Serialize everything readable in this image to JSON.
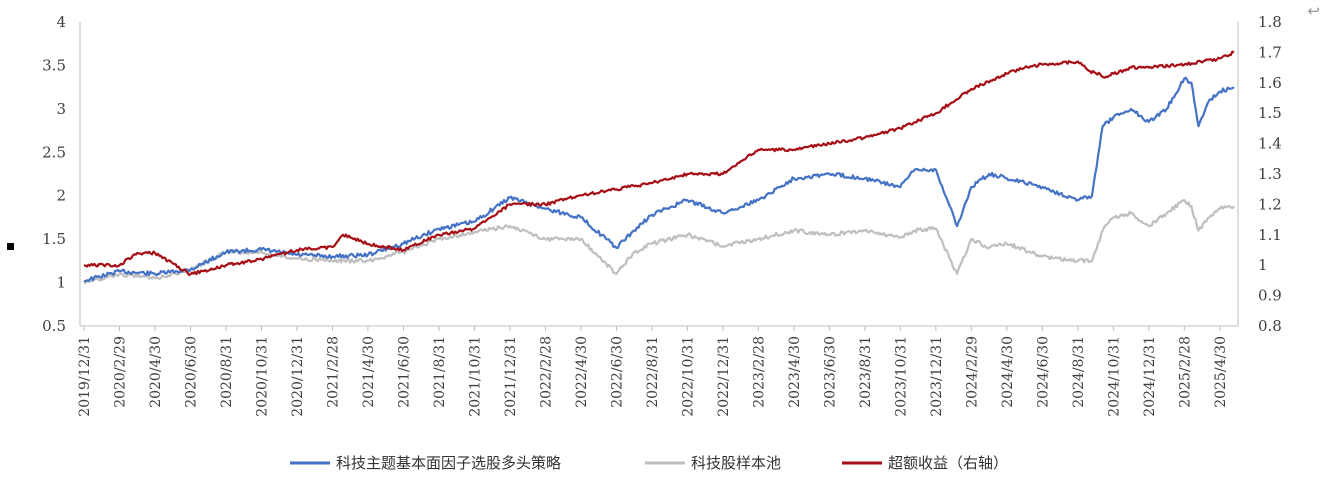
{
  "chart_data": {
    "type": "line",
    "x_tick_labels": [
      "2019/12/31",
      "2020/2/29",
      "2020/4/30",
      "2020/6/30",
      "2020/8/31",
      "2020/10/31",
      "2020/12/31",
      "2021/2/28",
      "2021/4/30",
      "2021/6/30",
      "2021/8/31",
      "2021/10/31",
      "2021/12/31",
      "2022/2/28",
      "2022/4/30",
      "2022/6/30",
      "2022/8/31",
      "2022/10/31",
      "2022/12/31",
      "2023/2/28",
      "2023/4/30",
      "2023/6/30",
      "2023/8/31",
      "2023/10/31",
      "2023/12/31",
      "2024/2/29",
      "2024/4/30",
      "2024/6/30",
      "2024/8/31",
      "2024/10/31",
      "2024/12/31",
      "2025/2/28",
      "2025/4/30"
    ],
    "y_left": {
      "ylim": [
        0.5,
        4
      ],
      "ticks": [
        "0.5",
        "1",
        "1.5",
        "2",
        "2.5",
        "3",
        "3.5",
        "4"
      ]
    },
    "y_right": {
      "ylim": [
        0.8,
        1.8
      ],
      "ticks": [
        "0.8",
        "0.9",
        "1",
        "1.1",
        "1.2",
        "1.3",
        "1.4",
        "1.5",
        "1.6",
        "1.7",
        "1.8"
      ]
    },
    "grid": false,
    "legend_position": "bottom",
    "series": [
      {
        "name": "科技主题基本面因子选股多头策略",
        "axis": "left",
        "color": "#4472c4",
        "x": [
          0,
          1,
          2,
          3,
          4,
          5,
          6,
          7,
          8,
          9,
          10,
          11,
          12,
          13,
          14,
          15,
          15.5,
          16,
          17,
          18,
          19,
          20,
          21,
          22,
          23,
          23.4,
          24,
          24.6,
          25,
          25.5,
          26,
          27,
          28,
          28.4,
          28.7,
          29,
          29.5,
          30,
          30.5,
          31,
          31.2,
          31.4,
          31.7,
          32,
          32.4
        ],
        "values": [
          1.02,
          1.13,
          1.1,
          1.15,
          1.35,
          1.38,
          1.32,
          1.3,
          1.32,
          1.45,
          1.62,
          1.7,
          1.98,
          1.85,
          1.75,
          1.4,
          1.6,
          1.78,
          1.95,
          1.8,
          1.95,
          2.2,
          2.25,
          2.2,
          2.1,
          2.3,
          2.3,
          1.65,
          2.1,
          2.25,
          2.2,
          2.1,
          1.95,
          2.0,
          2.8,
          2.9,
          3.0,
          2.85,
          3.0,
          3.35,
          3.3,
          2.8,
          3.1,
          3.2,
          3.25
        ]
      },
      {
        "name": "科技股样本池",
        "axis": "left",
        "color": "#bfbfbf",
        "x": [
          0,
          1,
          2,
          3,
          4,
          5,
          6,
          7,
          8,
          9,
          10,
          11,
          12,
          13,
          14,
          15,
          15.5,
          16,
          17,
          18,
          19,
          20,
          21,
          22,
          23,
          23.4,
          24,
          24.6,
          25,
          25.5,
          26,
          27,
          28,
          28.4,
          28.7,
          29,
          29.5,
          30,
          30.5,
          31,
          31.2,
          31.4,
          31.7,
          32,
          32.4
        ],
        "values": [
          1.0,
          1.1,
          1.05,
          1.15,
          1.35,
          1.35,
          1.28,
          1.25,
          1.25,
          1.35,
          1.5,
          1.58,
          1.65,
          1.5,
          1.5,
          1.1,
          1.35,
          1.45,
          1.55,
          1.42,
          1.5,
          1.6,
          1.55,
          1.6,
          1.52,
          1.6,
          1.62,
          1.1,
          1.5,
          1.4,
          1.45,
          1.3,
          1.25,
          1.25,
          1.6,
          1.75,
          1.8,
          1.65,
          1.8,
          1.95,
          1.88,
          1.6,
          1.75,
          1.85,
          1.88
        ]
      },
      {
        "name": "超额收益（右轴）",
        "axis": "right",
        "color": "#a50f15",
        "x": [
          0,
          1,
          1.5,
          2,
          3,
          4,
          5,
          6,
          7,
          7.3,
          8,
          9,
          10,
          11,
          12,
          13,
          14,
          15,
          16,
          17,
          18,
          19,
          20,
          21,
          22,
          23,
          24,
          25,
          26,
          26.5,
          27,
          28,
          28.3,
          28.8,
          29,
          29.5,
          30,
          31,
          32,
          32.4
        ],
        "values": [
          1.0,
          1.0,
          1.04,
          1.04,
          0.97,
          1.0,
          1.02,
          1.05,
          1.06,
          1.1,
          1.07,
          1.05,
          1.1,
          1.12,
          1.2,
          1.2,
          1.23,
          1.25,
          1.27,
          1.3,
          1.3,
          1.38,
          1.38,
          1.4,
          1.42,
          1.45,
          1.5,
          1.58,
          1.63,
          1.65,
          1.66,
          1.67,
          1.64,
          1.62,
          1.63,
          1.65,
          1.65,
          1.66,
          1.68,
          1.7
        ]
      }
    ]
  }
}
